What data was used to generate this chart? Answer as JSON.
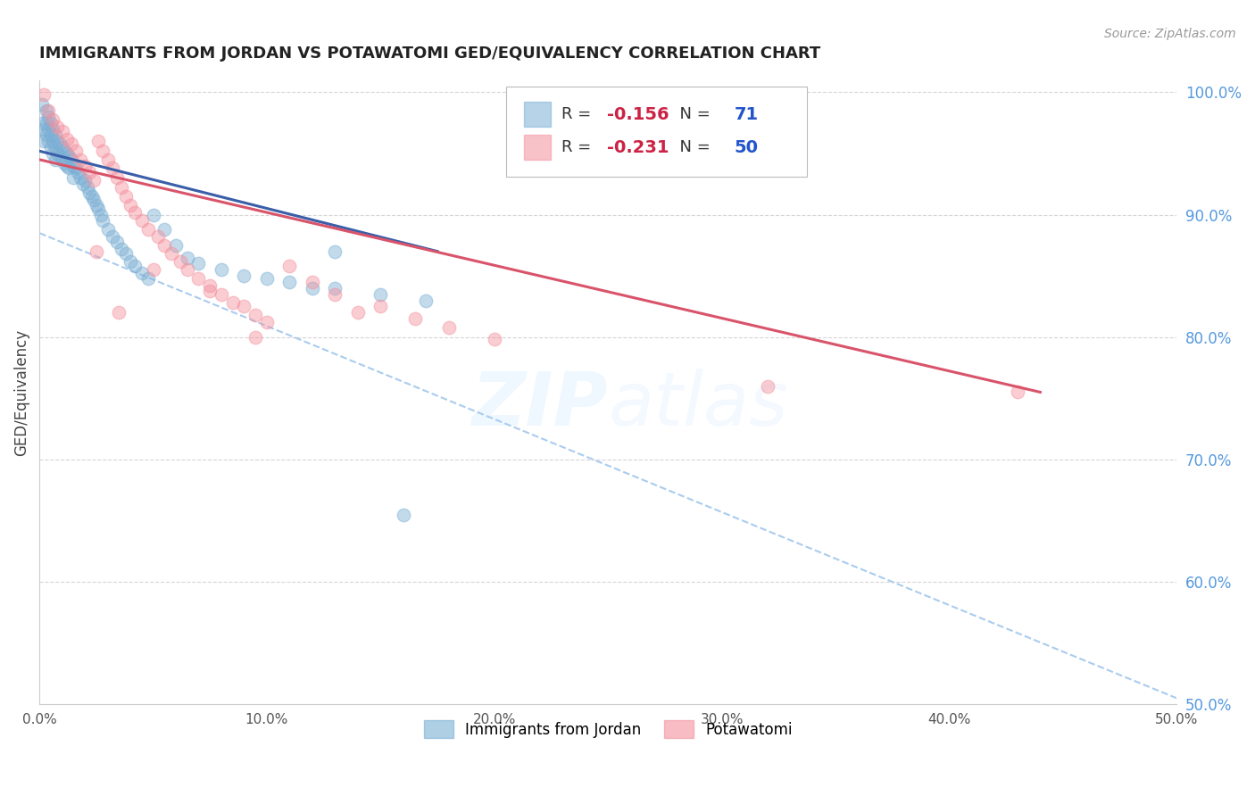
{
  "title": "IMMIGRANTS FROM JORDAN VS POTAWATOMI GED/EQUIVALENCY CORRELATION CHART",
  "source": "Source: ZipAtlas.com",
  "ylabel": "GED/Equivalency",
  "xmin": 0.0,
  "xmax": 0.5,
  "ymin": 0.5,
  "ymax": 1.01,
  "series1_label": "Immigrants from Jordan",
  "series1_R": "-0.156",
  "series1_N": "71",
  "series1_color": "#7BAFD4",
  "series2_label": "Potawatomi",
  "series2_R": "-0.231",
  "series2_N": "50",
  "series2_color": "#F4919E",
  "line1_color": "#3A5EA8",
  "line2_color": "#D9546A",
  "dashed_color": "#AACCEE",
  "background_color": "#FFFFFF",
  "grid_color": "#CCCCCC",
  "title_color": "#222222",
  "right_axis_color": "#5599DD",
  "source_color": "#999999",
  "jordan_x": [
    0.001,
    0.001,
    0.002,
    0.002,
    0.003,
    0.003,
    0.003,
    0.004,
    0.004,
    0.004,
    0.005,
    0.005,
    0.005,
    0.006,
    0.006,
    0.006,
    0.007,
    0.007,
    0.007,
    0.008,
    0.008,
    0.009,
    0.009,
    0.01,
    0.01,
    0.011,
    0.011,
    0.012,
    0.012,
    0.013,
    0.013,
    0.014,
    0.015,
    0.015,
    0.016,
    0.017,
    0.018,
    0.019,
    0.02,
    0.021,
    0.022,
    0.023,
    0.024,
    0.025,
    0.026,
    0.027,
    0.028,
    0.03,
    0.032,
    0.034,
    0.036,
    0.038,
    0.04,
    0.042,
    0.045,
    0.048,
    0.05,
    0.055,
    0.06,
    0.065,
    0.07,
    0.08,
    0.09,
    0.1,
    0.11,
    0.12,
    0.13,
    0.15,
    0.17,
    0.13,
    0.16
  ],
  "jordan_y": [
    0.99,
    0.975,
    0.97,
    0.96,
    0.985,
    0.975,
    0.965,
    0.98,
    0.97,
    0.96,
    0.975,
    0.965,
    0.955,
    0.97,
    0.96,
    0.95,
    0.965,
    0.955,
    0.945,
    0.96,
    0.95,
    0.958,
    0.948,
    0.955,
    0.945,
    0.952,
    0.942,
    0.95,
    0.94,
    0.948,
    0.938,
    0.945,
    0.94,
    0.93,
    0.938,
    0.935,
    0.93,
    0.925,
    0.928,
    0.922,
    0.918,
    0.915,
    0.912,
    0.908,
    0.905,
    0.9,
    0.895,
    0.888,
    0.882,
    0.878,
    0.872,
    0.868,
    0.862,
    0.858,
    0.852,
    0.848,
    0.9,
    0.888,
    0.875,
    0.865,
    0.86,
    0.855,
    0.85,
    0.848,
    0.845,
    0.84,
    0.87,
    0.835,
    0.83,
    0.84,
    0.655
  ],
  "potawatomi_x": [
    0.002,
    0.004,
    0.006,
    0.008,
    0.01,
    0.012,
    0.014,
    0.016,
    0.018,
    0.02,
    0.022,
    0.024,
    0.026,
    0.028,
    0.03,
    0.032,
    0.034,
    0.036,
    0.038,
    0.04,
    0.042,
    0.045,
    0.048,
    0.052,
    0.055,
    0.058,
    0.062,
    0.065,
    0.07,
    0.075,
    0.08,
    0.085,
    0.09,
    0.095,
    0.1,
    0.11,
    0.12,
    0.13,
    0.15,
    0.165,
    0.18,
    0.2,
    0.025,
    0.05,
    0.075,
    0.035,
    0.095,
    0.14,
    0.32,
    0.43
  ],
  "potawatomi_y": [
    0.998,
    0.985,
    0.978,
    0.972,
    0.968,
    0.962,
    0.958,
    0.952,
    0.945,
    0.94,
    0.935,
    0.928,
    0.96,
    0.952,
    0.945,
    0.938,
    0.93,
    0.922,
    0.915,
    0.908,
    0.902,
    0.895,
    0.888,
    0.882,
    0.875,
    0.868,
    0.862,
    0.855,
    0.848,
    0.842,
    0.835,
    0.828,
    0.825,
    0.818,
    0.812,
    0.858,
    0.845,
    0.835,
    0.825,
    0.815,
    0.808,
    0.798,
    0.87,
    0.855,
    0.838,
    0.82,
    0.8,
    0.82,
    0.76,
    0.755
  ],
  "jordan_line_x0": 0.0,
  "jordan_line_x1": 0.175,
  "jordan_line_y0": 0.952,
  "jordan_line_y1": 0.87,
  "potawatomi_line_x0": 0.0,
  "potawatomi_line_x1": 0.44,
  "potawatomi_line_y0": 0.945,
  "potawatomi_line_y1": 0.755,
  "dashed_line_x0": 0.0,
  "dashed_line_x1": 0.5,
  "dashed_line_y0": 0.885,
  "dashed_line_y1": 0.505
}
